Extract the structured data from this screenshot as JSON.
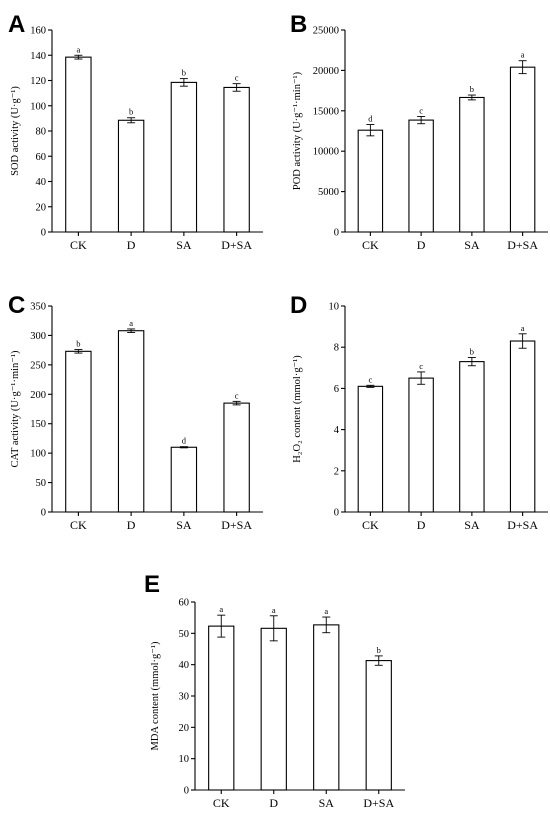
{
  "chart_data": [
    {
      "panel": "A",
      "type": "bar",
      "categories": [
        "CK",
        "D",
        "SA",
        "D+SA"
      ],
      "values": [
        138.5,
        88.5,
        118.5,
        114.5
      ],
      "errors": [
        1.5,
        2,
        3,
        3
      ],
      "labels": [
        "a",
        "b",
        "b",
        "c"
      ],
      "ylabel": "SOD activity (U·g⁻¹)",
      "ylim": [
        0,
        160
      ],
      "yticks": [
        "0",
        "20",
        "40",
        "60",
        "80",
        "100",
        "120",
        "140",
        "160"
      ]
    },
    {
      "panel": "B",
      "type": "bar",
      "categories": [
        "CK",
        "D",
        "SA",
        "D+SA"
      ],
      "values": [
        12600,
        13850,
        16650,
        20400
      ],
      "errors": [
        700,
        450,
        300,
        800
      ],
      "labels": [
        "d",
        "c",
        "b",
        "a"
      ],
      "ylabel": "POD activity (U·g⁻¹·min⁻¹)",
      "ylim": [
        0,
        25000
      ],
      "yticks": [
        "0",
        "5000",
        "10000",
        "15000",
        "20000",
        "25000"
      ]
    },
    {
      "panel": "C",
      "type": "bar",
      "categories": [
        "CK",
        "D",
        "SA",
        "D+SA"
      ],
      "values": [
        273,
        308,
        110,
        185
      ],
      "errors": [
        3,
        3,
        1,
        3
      ],
      "labels": [
        "b",
        "a",
        "d",
        "c"
      ],
      "ylabel": "CAT activity (U·g⁻¹·min⁻¹)",
      "ylim": [
        0,
        350
      ],
      "yticks": [
        "0",
        "50",
        "100",
        "150",
        "200",
        "250",
        "300",
        "350"
      ]
    },
    {
      "panel": "D",
      "type": "bar",
      "categories": [
        "CK",
        "D",
        "SA",
        "D+SA"
      ],
      "values": [
        6.1,
        6.5,
        7.3,
        8.3
      ],
      "errors": [
        0.05,
        0.3,
        0.2,
        0.35
      ],
      "labels": [
        "c",
        "c",
        "b",
        "a"
      ],
      "ylabel": "H₂O₂ content (mmol·g⁻¹)",
      "ylim": [
        0,
        10
      ],
      "yticks": [
        "0",
        "2",
        "4",
        "6",
        "8",
        "10"
      ]
    },
    {
      "panel": "E",
      "type": "bar",
      "categories": [
        "CK",
        "D",
        "SA",
        "D+SA"
      ],
      "values": [
        52.3,
        51.6,
        52.7,
        41.3
      ],
      "errors": [
        3.5,
        4,
        2.5,
        1.5
      ],
      "labels": [
        "a",
        "a",
        "a",
        "b"
      ],
      "ylabel": "MDA content (mmol·g⁻¹)",
      "ylim": [
        0,
        60
      ],
      "yticks": [
        "0",
        "10",
        "20",
        "30",
        "40",
        "50",
        "60"
      ]
    }
  ]
}
